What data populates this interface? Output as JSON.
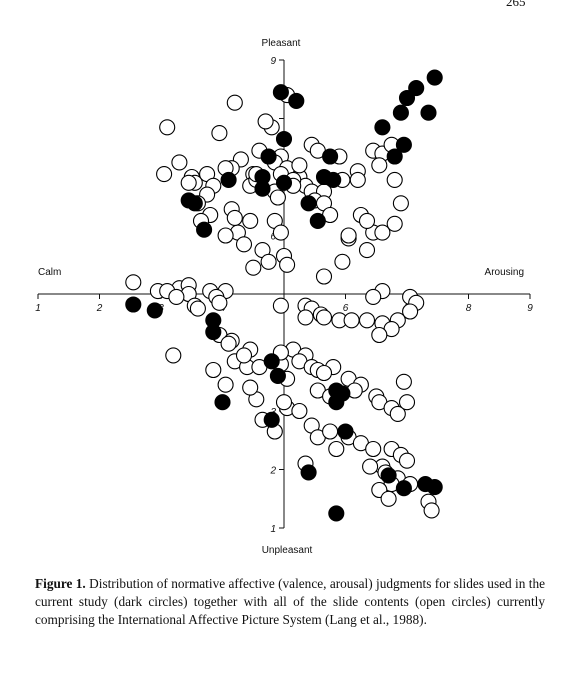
{
  "page_number": "265",
  "caption": {
    "label": "Figure 1.",
    "text": "Distribution of normative affective (valence, arousal) judgments for slides used in the current study (dark circles) together with all of the slide contents (open circles) currently comprising the International Affective Picture System (Lang et al., 1988)."
  },
  "chart_data": {
    "type": "scatter",
    "top_label": "Pleasant",
    "bottom_label": "Unpleasant",
    "left_label": "Calm",
    "right_label": "Arousing",
    "x_axis": "arousal",
    "y_axis": "valence",
    "xlim": [
      1,
      9
    ],
    "ylim": [
      1,
      9
    ],
    "axes_cross_at": [
      5,
      5
    ],
    "x_ticks": [
      1,
      2,
      3,
      4,
      5,
      6,
      7,
      8,
      9
    ],
    "x_tick_labels": [
      "1",
      "2",
      "3",
      "4",
      "",
      "6",
      "7",
      "8",
      "9"
    ],
    "y_ticks": [
      1,
      2,
      3,
      4,
      5,
      6,
      7,
      8,
      9
    ],
    "y_tick_labels": [
      "1",
      "2",
      "3",
      "",
      "",
      "6",
      "",
      "",
      "9"
    ],
    "colors": {
      "dark": "#000000",
      "open_fill": "#ffffff",
      "stroke": "#000000"
    },
    "series": [
      {
        "marker": "filled",
        "x": [
          7.15,
          7.45,
          7.0,
          6.9,
          7.35,
          6.6,
          6.95,
          6.8,
          4.95,
          5.2,
          5.0,
          4.75,
          5.75,
          5.65,
          5.8,
          5.4,
          4.65,
          4.1,
          4.65,
          5.0,
          5.55,
          3.45,
          3.55,
          3.7,
          2.55,
          2.9,
          3.85,
          3.85,
          4.8,
          4.9,
          5.85,
          5.95,
          4.0,
          5.85,
          6.0,
          4.8,
          5.4,
          6.7,
          6.95,
          7.3,
          7.45,
          5.85
        ],
        "y": [
          8.52,
          8.7,
          8.35,
          8.1,
          8.1,
          7.85,
          7.55,
          7.35,
          8.45,
          8.3,
          7.65,
          7.35,
          7.35,
          7.0,
          6.95,
          6.55,
          7.0,
          6.95,
          6.8,
          6.9,
          6.25,
          6.6,
          6.55,
          6.1,
          4.82,
          4.72,
          4.55,
          4.35,
          3.85,
          3.6,
          3.35,
          3.3,
          3.15,
          3.15,
          2.65,
          2.85,
          1.95,
          1.9,
          1.68,
          1.75,
          1.7,
          1.25
        ]
      },
      {
        "marker": "open",
        "x": [
          4.2,
          5.05,
          3.1,
          3.95,
          4.8,
          4.7,
          5.45,
          5.55,
          4.95,
          4.3,
          4.5,
          4.15,
          3.5,
          4.85,
          5.05,
          5.9,
          4.95,
          5.25,
          5.35,
          5.45,
          5.15,
          6.2,
          6.45,
          6.6,
          6.55,
          6.75,
          6.2,
          4.45,
          4.55,
          4.85,
          4.9,
          3.55,
          4.05,
          3.75,
          4.55,
          4.6,
          5.25,
          5.15,
          5.65,
          5.5,
          5.65,
          5.95,
          5.75,
          6.25,
          6.45,
          6.8,
          6.9,
          4.15,
          3.3,
          3.05,
          3.45,
          3.85,
          3.75,
          3.6,
          3.8,
          3.65,
          4.45,
          4.85,
          4.95,
          4.25,
          4.2,
          4.05,
          4.35,
          4.65,
          5.0,
          5.05,
          5.65,
          5.95,
          6.35,
          6.05,
          6.05,
          6.35,
          6.6,
          6.8,
          4.75,
          4.5,
          2.55,
          2.95,
          3.3,
          3.45,
          3.1,
          3.8,
          4.05,
          3.45,
          3.9,
          3.25,
          3.95,
          3.55,
          3.6,
          6.6,
          6.45,
          7.05,
          7.15,
          7.05,
          6.85,
          4.95,
          5.35,
          5.45,
          5.6,
          5.35,
          5.65,
          5.9,
          6.1,
          6.35,
          6.6,
          6.75,
          6.55,
          3.95,
          4.15,
          4.1,
          4.45,
          4.2,
          4.4,
          4.6,
          3.85,
          3.2,
          4.35,
          5.15,
          5.35,
          5.25,
          4.95,
          5.45,
          5.55,
          5.8,
          5.65,
          6.05,
          6.25,
          6.15,
          6.5,
          6.55,
          6.75,
          6.85,
          5.55,
          5.75,
          5.05,
          4.05,
          4.55,
          5.0,
          6.95,
          7.0,
          5.45,
          5.55,
          5.75,
          5.85,
          6.05,
          6.25,
          6.45,
          6.75,
          6.9,
          7.0,
          6.6,
          6.65,
          6.85,
          6.75,
          7.05,
          5.35,
          6.4,
          6.55,
          6.7,
          7.35,
          7.4,
          5.25,
          4.85,
          4.65,
          4.45,
          4.95,
          5.05
        ],
        "y": [
          8.27,
          8.4,
          7.85,
          7.75,
          7.85,
          7.95,
          7.55,
          7.45,
          7.35,
          7.3,
          7.05,
          7.15,
          7.0,
          7.25,
          7.15,
          7.35,
          7.05,
          7.0,
          6.85,
          6.75,
          6.95,
          7.1,
          7.45,
          7.4,
          7.2,
          7.55,
          6.95,
          6.85,
          6.95,
          6.75,
          6.65,
          6.9,
          7.15,
          7.05,
          7.05,
          7.45,
          7.2,
          6.85,
          6.75,
          6.6,
          6.55,
          6.95,
          6.35,
          6.35,
          6.05,
          6.95,
          6.55,
          6.45,
          7.25,
          7.05,
          6.9,
          6.85,
          6.7,
          6.55,
          6.35,
          6.25,
          6.25,
          6.25,
          6.05,
          6.05,
          6.3,
          6.0,
          5.85,
          5.75,
          5.65,
          5.5,
          5.3,
          5.55,
          5.75,
          5.95,
          6.0,
          6.25,
          6.05,
          6.2,
          5.55,
          5.45,
          5.2,
          5.05,
          5.1,
          5.15,
          5.05,
          5.05,
          5.05,
          5.0,
          4.95,
          4.95,
          4.85,
          4.8,
          4.75,
          5.05,
          4.95,
          4.95,
          4.85,
          4.7,
          4.55,
          4.8,
          4.8,
          4.75,
          4.65,
          4.6,
          4.6,
          4.55,
          4.55,
          4.55,
          4.5,
          4.4,
          4.3,
          4.3,
          4.2,
          4.15,
          4.05,
          3.85,
          3.75,
          3.75,
          3.7,
          3.95,
          3.95,
          4.05,
          3.95,
          3.85,
          3.8,
          3.75,
          3.7,
          3.75,
          3.65,
          3.55,
          3.45,
          3.35,
          3.25,
          3.15,
          3.05,
          2.95,
          3.35,
          3.25,
          3.05,
          3.45,
          3.2,
          3.15,
          3.5,
          3.15,
          2.75,
          2.55,
          2.65,
          2.35,
          2.55,
          2.45,
          2.35,
          2.35,
          2.25,
          2.15,
          2.05,
          1.95,
          1.85,
          1.75,
          1.75,
          2.1,
          2.05,
          1.65,
          1.5,
          1.45,
          1.3,
          3.0,
          2.65,
          2.85,
          3.4,
          4.0,
          3.55
        ]
      }
    ]
  }
}
